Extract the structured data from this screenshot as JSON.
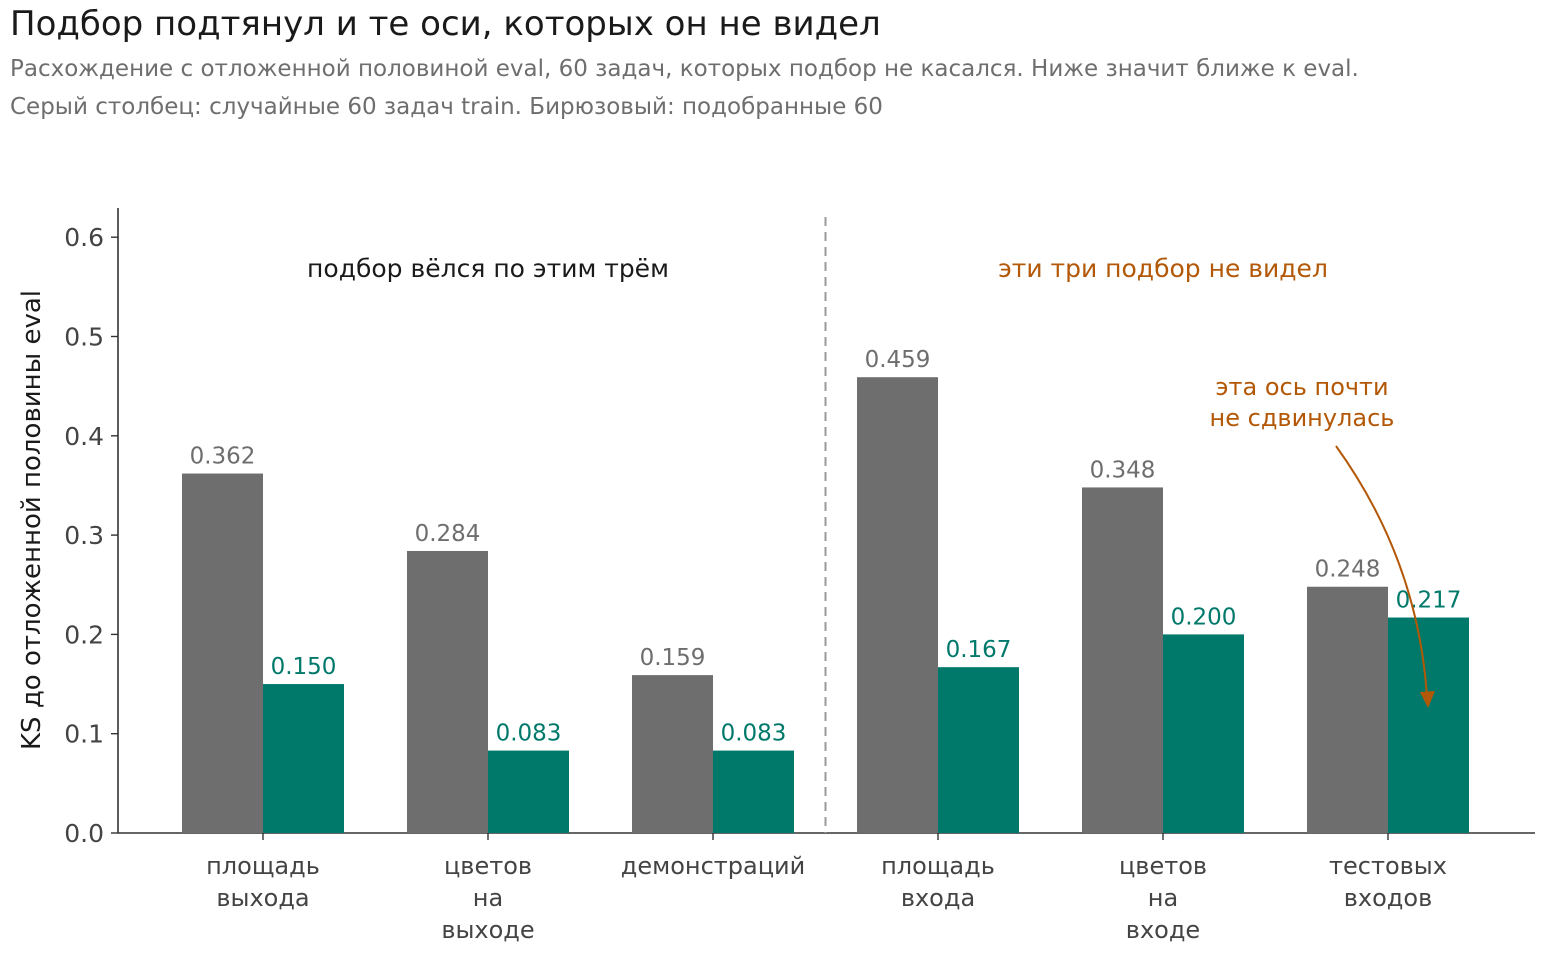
{
  "title": "Подбор подтянул и те оси, которых он не видел",
  "subtitle_lines": [
    "Расхождение с отложенной половиной eval, 60 задач, которых подбор не касался. Ниже значит ближе к eval.",
    "Серый столбец: случайные 60 задач train. Бирюзовый: подобранные 60"
  ],
  "chart_data": {
    "type": "bar",
    "ylabel": "KS до отложенной половины eval",
    "xlabel": "",
    "ylim": [
      0,
      0.63
    ],
    "yticks": [
      "0.0",
      "0.1",
      "0.2",
      "0.3",
      "0.4",
      "0.5",
      "0.6"
    ],
    "grid": false,
    "categories": [
      [
        "площадь",
        "выхода"
      ],
      [
        "цветов",
        "на",
        "выходе"
      ],
      [
        "демонстраций"
      ],
      [
        "площадь",
        "входа"
      ],
      [
        "цветов",
        "на",
        "входе"
      ],
      [
        "тестовых",
        "входов"
      ]
    ],
    "series": [
      {
        "color": "#6e6e6e",
        "values": [
          0.362,
          0.284,
          0.159,
          0.459,
          0.348,
          0.248
        ],
        "labels": [
          "0.362",
          "0.284",
          "0.159",
          "0.459",
          "0.348",
          "0.248"
        ]
      },
      {
        "color": "#00796b",
        "values": [
          0.15,
          0.083,
          0.083,
          0.167,
          0.2,
          0.217
        ],
        "labels": [
          "0.150",
          "0.083",
          "0.083",
          "0.167",
          "0.200",
          "0.217"
        ]
      }
    ],
    "group_labels": [
      {
        "text": "подбор вёлся по этим трём",
        "color": "#1a1a1a"
      },
      {
        "text": "эти три подбор не видел",
        "color": "#b35806"
      }
    ],
    "annotation": {
      "lines": [
        "эта ось почти",
        "не сдвинулась"
      ],
      "color": "#b35806",
      "target_category": 5,
      "target_series": 1
    }
  }
}
